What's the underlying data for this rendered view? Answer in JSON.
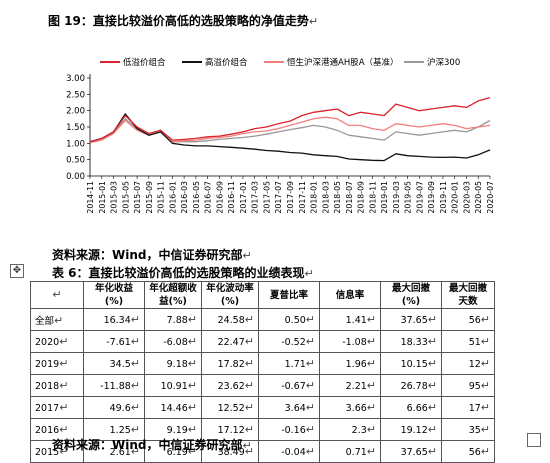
{
  "figure": {
    "title": "图 19：直接比较溢价高低的选股策略的净值走势",
    "source": "资料来源：Wind，中信证券研究部"
  },
  "table": {
    "title": "表 6：直接比较溢价高低的选股策略的业绩表现",
    "source": "资料来源：Wind，中信证券研究部",
    "headers": [
      "",
      "年化收益(%)",
      "年化超额收益(%)",
      "年化波动率(%)",
      "夏普比率",
      "信息率",
      "最大回撤(%)",
      "最大回撤天数"
    ],
    "rows": [
      [
        "全部",
        "16.34",
        "7.88",
        "24.58",
        "0.50",
        "1.41",
        "37.65",
        "56"
      ],
      [
        "2020",
        "-7.61",
        "-6.08",
        "22.47",
        "-0.52",
        "-1.08",
        "18.33",
        "51"
      ],
      [
        "2019",
        "34.5",
        "9.18",
        "17.82",
        "1.71",
        "1.96",
        "10.15",
        "12"
      ],
      [
        "2018",
        "-11.88",
        "10.91",
        "23.62",
        "-0.67",
        "2.21",
        "26.78",
        "95"
      ],
      [
        "2017",
        "49.6",
        "14.46",
        "12.52",
        "3.64",
        "3.66",
        "6.66",
        "17"
      ],
      [
        "2016",
        "1.25",
        "9.19",
        "17.12",
        "-0.16",
        "2.3",
        "19.12",
        "35"
      ],
      [
        "2015",
        "2.61",
        "6.19",
        "38.49",
        "-0.04",
        "0.71",
        "37.65",
        "56"
      ]
    ]
  },
  "chart_data": {
    "type": "line",
    "title": "",
    "ylim": [
      0,
      3.0
    ],
    "yticks": [
      "0.00",
      "0.50",
      "1.00",
      "1.50",
      "2.00",
      "2.50",
      "3.00"
    ],
    "x": [
      "2014-11",
      "2015-01",
      "2015-03",
      "2015-05",
      "2015-07",
      "2015-09",
      "2015-11",
      "2016-01",
      "2016-03",
      "2016-05",
      "2016-07",
      "2016-09",
      "2016-11",
      "2017-01",
      "2017-03",
      "2017-05",
      "2017-07",
      "2017-09",
      "2017-11",
      "2018-01",
      "2018-03",
      "2018-05",
      "2018-07",
      "2018-09",
      "2018-11",
      "2019-01",
      "2019-03",
      "2019-05",
      "2019-07",
      "2019-09",
      "2019-11",
      "2020-01",
      "2020-03",
      "2020-05",
      "2020-07"
    ],
    "legend_position": "top",
    "series": [
      {
        "name": "低溢价组合",
        "color": "#d9232d",
        "values": [
          1.05,
          1.15,
          1.35,
          1.85,
          1.5,
          1.3,
          1.4,
          1.1,
          1.12,
          1.15,
          1.2,
          1.22,
          1.28,
          1.35,
          1.45,
          1.5,
          1.6,
          1.68,
          1.85,
          1.95,
          2.0,
          2.05,
          1.85,
          1.95,
          1.9,
          1.85,
          2.2,
          2.1,
          2.0,
          2.05,
          2.1,
          2.15,
          2.1,
          2.3,
          2.4
        ]
      },
      {
        "name": "高溢价组合",
        "color": "#111111",
        "values": [
          1.05,
          1.15,
          1.35,
          1.9,
          1.45,
          1.25,
          1.35,
          1.0,
          0.95,
          0.92,
          0.92,
          0.9,
          0.88,
          0.85,
          0.82,
          0.78,
          0.76,
          0.72,
          0.7,
          0.65,
          0.62,
          0.6,
          0.52,
          0.5,
          0.48,
          0.47,
          0.68,
          0.62,
          0.6,
          0.58,
          0.57,
          0.58,
          0.55,
          0.65,
          0.8
        ]
      },
      {
        "name": "恒生沪深港通AH股A（基准）",
        "color": "#f08080",
        "values": [
          1.02,
          1.1,
          1.3,
          1.7,
          1.4,
          1.25,
          1.35,
          1.05,
          1.08,
          1.1,
          1.15,
          1.18,
          1.22,
          1.3,
          1.35,
          1.38,
          1.45,
          1.55,
          1.65,
          1.75,
          1.8,
          1.75,
          1.55,
          1.55,
          1.45,
          1.4,
          1.6,
          1.55,
          1.5,
          1.55,
          1.6,
          1.55,
          1.45,
          1.5,
          1.55
        ]
      },
      {
        "name": "沪深300",
        "color": "#999999",
        "values": [
          1.02,
          1.15,
          1.35,
          1.75,
          1.45,
          1.25,
          1.35,
          1.05,
          1.05,
          1.05,
          1.08,
          1.12,
          1.15,
          1.18,
          1.22,
          1.28,
          1.35,
          1.42,
          1.48,
          1.55,
          1.5,
          1.4,
          1.25,
          1.2,
          1.15,
          1.1,
          1.35,
          1.3,
          1.25,
          1.3,
          1.35,
          1.4,
          1.35,
          1.5,
          1.7
        ]
      }
    ]
  }
}
